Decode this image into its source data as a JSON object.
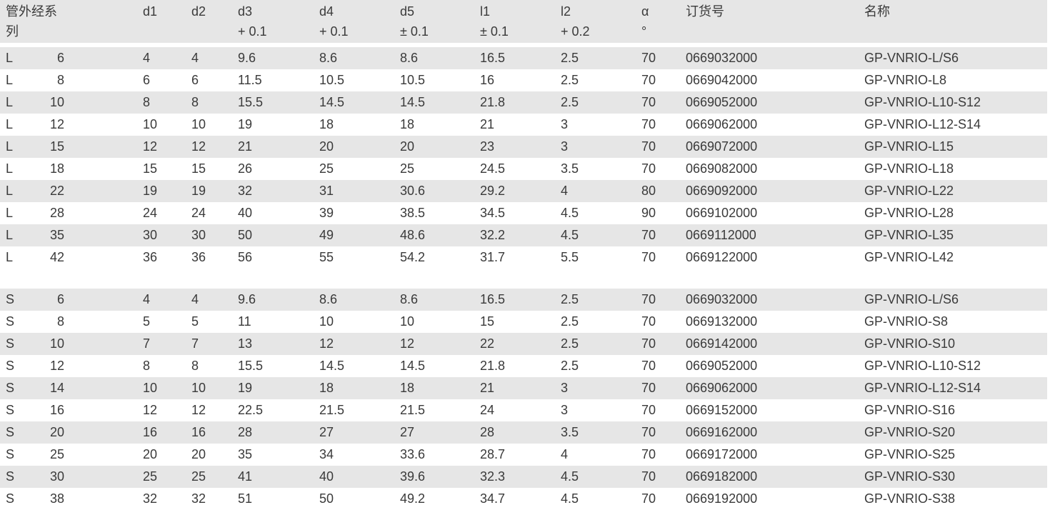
{
  "header": {
    "series": [
      "管外经系",
      "列"
    ],
    "d1": [
      "d1",
      ""
    ],
    "d2": [
      "d2",
      ""
    ],
    "d3": [
      "d3",
      "+ 0.1"
    ],
    "d4": [
      "d4",
      "+ 0.1"
    ],
    "d5": [
      "d5",
      "± 0.1"
    ],
    "l1": [
      "l1",
      "± 0.1"
    ],
    "l2": [
      "l2",
      "+ 0.2"
    ],
    "alpha": [
      "α",
      "°"
    ],
    "order_no": [
      "订货号",
      ""
    ],
    "name": [
      "名称",
      ""
    ]
  },
  "row_color": "#e6e6e6",
  "groups": [
    {
      "rows": [
        [
          "L",
          "6",
          "4",
          "4",
          "9.6",
          "8.6",
          "8.6",
          "16.5",
          "2.5",
          "70",
          "0669032000",
          "GP-VNRIO-L/S6"
        ],
        [
          "L",
          "8",
          "6",
          "6",
          "11.5",
          "10.5",
          "10.5",
          "16",
          "2.5",
          "70",
          "0669042000",
          "GP-VNRIO-L8"
        ],
        [
          "L",
          "10",
          "8",
          "8",
          "15.5",
          "14.5",
          "14.5",
          "21.8",
          "2.5",
          "70",
          "0669052000",
          "GP-VNRIO-L10-S12"
        ],
        [
          "L",
          "12",
          "10",
          "10",
          "19",
          "18",
          "18",
          "21",
          "3",
          "70",
          "0669062000",
          "GP-VNRIO-L12-S14"
        ],
        [
          "L",
          "15",
          "12",
          "12",
          "21",
          "20",
          "20",
          "23",
          "3",
          "70",
          "0669072000",
          "GP-VNRIO-L15"
        ],
        [
          "L",
          "18",
          "15",
          "15",
          "26",
          "25",
          "25",
          "24.5",
          "3.5",
          "70",
          "0669082000",
          "GP-VNRIO-L18"
        ],
        [
          "L",
          "22",
          "19",
          "19",
          "32",
          "31",
          "30.6",
          "29.2",
          "4",
          "80",
          "0669092000",
          "GP-VNRIO-L22"
        ],
        [
          "L",
          "28",
          "24",
          "24",
          "40",
          "39",
          "38.5",
          "34.5",
          "4.5",
          "90",
          "0669102000",
          "GP-VNRIO-L28"
        ],
        [
          "L",
          "35",
          "30",
          "30",
          "50",
          "49",
          "48.6",
          "32.2",
          "4.5",
          "70",
          "0669112000",
          "GP-VNRIO-L35"
        ],
        [
          "L",
          "42",
          "36",
          "36",
          "56",
          "55",
          "54.2",
          "31.7",
          "5.5",
          "70",
          "0669122000",
          "GP-VNRIO-L42"
        ]
      ]
    },
    {
      "rows": [
        [
          "S",
          "6",
          "4",
          "4",
          "9.6",
          "8.6",
          "8.6",
          "16.5",
          "2.5",
          "70",
          "0669032000",
          "GP-VNRIO-L/S6"
        ],
        [
          "S",
          "8",
          "5",
          "5",
          "11",
          "10",
          "10",
          "15",
          "2.5",
          "70",
          "0669132000",
          "GP-VNRIO-S8"
        ],
        [
          "S",
          "10",
          "7",
          "7",
          "13",
          "12",
          "12",
          "22",
          "2.5",
          "70",
          "0669142000",
          "GP-VNRIO-S10"
        ],
        [
          "S",
          "12",
          "8",
          "8",
          "15.5",
          "14.5",
          "14.5",
          "21.8",
          "2.5",
          "70",
          "0669052000",
          "GP-VNRIO-L10-S12"
        ],
        [
          "S",
          "14",
          "10",
          "10",
          "19",
          "18",
          "18",
          "21",
          "3",
          "70",
          "0669062000",
          "GP-VNRIO-L12-S14"
        ],
        [
          "S",
          "16",
          "12",
          "12",
          "22.5",
          "21.5",
          "21.5",
          "24",
          "3",
          "70",
          "0669152000",
          "GP-VNRIO-S16"
        ],
        [
          "S",
          "20",
          "16",
          "16",
          "28",
          "27",
          "27",
          "28",
          "3.5",
          "70",
          "0669162000",
          "GP-VNRIO-S20"
        ],
        [
          "S",
          "25",
          "20",
          "20",
          "35",
          "34",
          "33.6",
          "28.7",
          "4",
          "70",
          "0669172000",
          "GP-VNRIO-S25"
        ],
        [
          "S",
          "30",
          "25",
          "25",
          "41",
          "40",
          "39.6",
          "32.3",
          "4.5",
          "70",
          "0669182000",
          "GP-VNRIO-S30"
        ],
        [
          "S",
          "38",
          "32",
          "32",
          "51",
          "50",
          "49.2",
          "34.7",
          "4.5",
          "70",
          "0669192000",
          "GP-VNRIO-S38"
        ]
      ]
    }
  ]
}
